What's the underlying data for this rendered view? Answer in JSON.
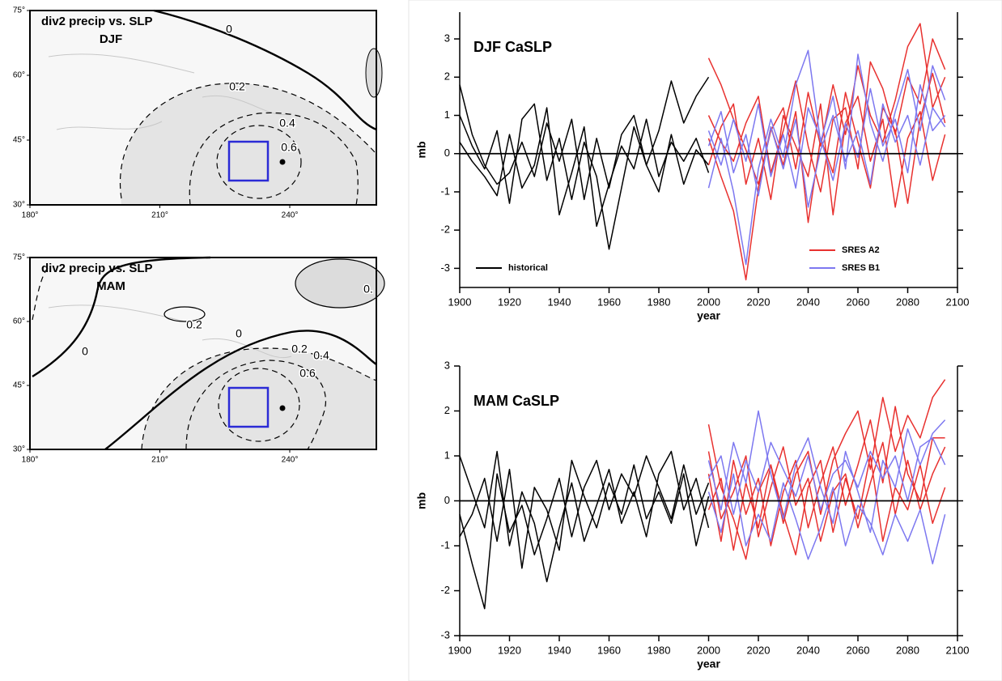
{
  "chart_data": [
    {
      "type": "map",
      "title": "div2 precip vs. SLP",
      "subtitle": "DJF",
      "xlim": [
        180,
        260
      ],
      "ylim": [
        30,
        75
      ],
      "xticks": [
        {
          "value": 180,
          "label": "180°"
        },
        {
          "value": 210,
          "label": "210°"
        },
        {
          "value": 240,
          "label": "240°"
        }
      ],
      "yticks": [
        {
          "value": 30,
          "label": "30°"
        },
        {
          "value": 45,
          "label": "45°"
        },
        {
          "value": 60,
          "label": "60°"
        },
        {
          "value": 75,
          "label": "75°"
        }
      ],
      "annotations": [
        "0",
        "0.2",
        "0.4",
        "0.6"
      ]
    },
    {
      "type": "map",
      "title": "div2 precip vs. SLP",
      "subtitle": "MAM",
      "xlim": [
        180,
        260
      ],
      "ylim": [
        30,
        75
      ],
      "xticks": [
        {
          "value": 180,
          "label": "180°"
        },
        {
          "value": 210,
          "label": "210°"
        },
        {
          "value": 240,
          "label": "240°"
        }
      ],
      "yticks": [
        {
          "value": 30,
          "label": "30°"
        },
        {
          "value": 45,
          "label": "45°"
        },
        {
          "value": 60,
          "label": "60°"
        },
        {
          "value": 75,
          "label": "75°"
        }
      ],
      "annotations": [
        "0.",
        "0.2",
        "0",
        "0",
        "0.2",
        "0.4",
        "0.6"
      ]
    },
    {
      "type": "line",
      "title": "DJF CaSLP",
      "xlabel": "year",
      "ylabel": "mb",
      "xlim": [
        1900,
        2100
      ],
      "xticks": [
        1900,
        1920,
        1940,
        1960,
        1980,
        2000,
        2020,
        2040,
        2060,
        2080,
        2100
      ],
      "ylim": [
        -3.5,
        3.7
      ],
      "yticks": [
        -3,
        -2,
        -1,
        0,
        1,
        2,
        3
      ],
      "hlines": [
        0
      ],
      "legend": true,
      "series": [
        {
          "name": "historical",
          "color": "#000000",
          "x": [
            1900,
            1905,
            1910,
            1915,
            1920,
            1925,
            1930,
            1935,
            1940,
            1945,
            1950,
            1955,
            1960,
            1965,
            1970,
            1975,
            1980,
            1985,
            1990,
            1995,
            2000
          ],
          "values": [
            1.8,
            0.5,
            -0.3,
            -0.8,
            -0.5,
            0.3,
            -0.6,
            0.8,
            -0.2,
            0.9,
            -1.2,
            0.4,
            -0.9,
            0.5,
            1.0,
            -0.3,
            0.6,
            1.9,
            0.8,
            1.5,
            2.0
          ]
        },
        {
          "color": "#000000",
          "x": [
            1900,
            1905,
            1910,
            1915,
            1920,
            1925,
            1930,
            1935,
            1940,
            1945,
            1950,
            1955,
            1960,
            1965,
            1970,
            1975,
            1980,
            1985,
            1990,
            1995,
            2000
          ],
          "values": [
            0.3,
            -0.2,
            -0.6,
            -1.1,
            0.5,
            -0.9,
            -0.3,
            1.2,
            -1.6,
            -0.5,
            0.7,
            -1.9,
            -0.8,
            0.2,
            -0.4,
            0.9,
            -0.6,
            0.3,
            -0.2,
            0.4,
            -0.5
          ]
        },
        {
          "color": "#000000",
          "x": [
            1900,
            1905,
            1910,
            1915,
            1920,
            1925,
            1930,
            1935,
            1940,
            1945,
            1950,
            1955,
            1960,
            1965,
            1970,
            1975,
            1980,
            1985,
            1990,
            1995,
            2000
          ],
          "values": [
            1.0,
            0.2,
            -0.4,
            0.6,
            -1.3,
            0.9,
            1.3,
            -0.7,
            0.4,
            -1.2,
            0.3,
            -0.6,
            -2.5,
            -0.9,
            0.7,
            -0.3,
            -1.0,
            0.5,
            -0.8,
            0.1,
            -0.3
          ]
        },
        {
          "name": "SRES A2",
          "color": "#e8312f",
          "x": [
            2000,
            2005,
            2010,
            2015,
            2020,
            2025,
            2030,
            2035,
            2040,
            2045,
            2050,
            2055,
            2060,
            2065,
            2070,
            2075,
            2080,
            2085,
            2090,
            2095
          ],
          "values": [
            2.5,
            1.8,
            0.9,
            0.1,
            -0.8,
            0.6,
            1.2,
            -0.4,
            1.6,
            0.2,
            1.8,
            0.5,
            2.3,
            1.0,
            0.3,
            1.4,
            2.8,
            3.4,
            1.2,
            2.0
          ]
        },
        {
          "color": "#e8312f",
          "x": [
            2000,
            2005,
            2010,
            2015,
            2020,
            2025,
            2030,
            2035,
            2040,
            2045,
            2050,
            2055,
            2060,
            2065,
            2070,
            2075,
            2080,
            2085,
            2090,
            2095
          ],
          "values": [
            0.4,
            -0.6,
            -1.5,
            -3.3,
            -0.9,
            0.7,
            -0.3,
            1.1,
            -1.8,
            0.4,
            -0.5,
            1.6,
            0.3,
            -0.9,
            1.2,
            0.6,
            -1.3,
            0.9,
            2.1,
            0.8
          ]
        },
        {
          "color": "#e8312f",
          "x": [
            2000,
            2005,
            2010,
            2015,
            2020,
            2025,
            2030,
            2035,
            2040,
            2045,
            2050,
            2055,
            2060,
            2065,
            2070,
            2075,
            2080,
            2085,
            2090,
            2095
          ],
          "values": [
            1.0,
            0.3,
            -0.2,
            0.8,
            1.5,
            -0.5,
            0.6,
            1.9,
            0.2,
            -1.0,
            0.9,
            1.2,
            -0.4,
            2.4,
            1.7,
            0.5,
            2.0,
            1.3,
            3.0,
            2.2
          ]
        },
        {
          "color": "#e8312f",
          "x": [
            2000,
            2005,
            2010,
            2015,
            2020,
            2025,
            2030,
            2035,
            2040,
            2045,
            2050,
            2055,
            2060,
            2065,
            2070,
            2075,
            2080,
            2085,
            2090,
            2095
          ],
          "values": [
            -0.3,
            0.7,
            1.3,
            -0.8,
            0.4,
            -1.2,
            1.0,
            0.2,
            -0.6,
            1.3,
            -1.6,
            0.8,
            1.5,
            -0.2,
            0.9,
            -1.4,
            0.4,
            1.1,
            -0.7,
            0.5
          ]
        },
        {
          "name": "SRES B1",
          "color": "#7d78f0",
          "x": [
            2000,
            2005,
            2010,
            2015,
            2020,
            2025,
            2030,
            2035,
            2040,
            2045,
            2050,
            2055,
            2060,
            2065,
            2070,
            2075,
            2080,
            2085,
            2090,
            2095
          ],
          "values": [
            -0.9,
            0.4,
            -1.0,
            -2.9,
            -0.4,
            0.9,
            -0.1,
            1.8,
            2.7,
            0.3,
            1.5,
            -0.4,
            2.6,
            0.8,
            -0.2,
            1.1,
            2.2,
            0.6,
            2.3,
            1.4
          ]
        },
        {
          "color": "#7d78f0",
          "x": [
            2000,
            2005,
            2010,
            2015,
            2020,
            2025,
            2030,
            2035,
            2040,
            2045,
            2050,
            2055,
            2060,
            2065,
            2070,
            2075,
            2080,
            2085,
            2090,
            2095
          ],
          "values": [
            0.6,
            -0.3,
            0.9,
            -0.2,
            1.3,
            -0.6,
            0.5,
            -0.9,
            1.2,
            0.4,
            -0.7,
            0.8,
            -0.1,
            1.7,
            0.2,
            0.9,
            -0.5,
            1.8,
            0.6,
            1.0
          ]
        },
        {
          "color": "#7d78f0",
          "x": [
            2000,
            2005,
            2010,
            2015,
            2020,
            2025,
            2030,
            2035,
            2040,
            2045,
            2050,
            2055,
            2060,
            2065,
            2070,
            2075,
            2080,
            2085,
            2090,
            2095
          ],
          "values": [
            0.2,
            1.1,
            -0.5,
            0.5,
            -1.1,
            0.7,
            -0.4,
            0.9,
            -1.4,
            0.1,
            1.0,
            -0.2,
            0.6,
            -0.8,
            1.3,
            0.3,
            1.0,
            -0.3,
            1.2,
            0.7
          ]
        }
      ]
    },
    {
      "type": "line",
      "title": "MAM CaSLP",
      "xlabel": "year",
      "ylabel": "mb",
      "xlim": [
        1900,
        2100
      ],
      "xticks": [
        1900,
        1920,
        1940,
        1960,
        1980,
        2000,
        2020,
        2040,
        2060,
        2080,
        2100
      ],
      "ylim": [
        -3,
        3
      ],
      "yticks": [
        -3,
        -2,
        -1,
        0,
        1,
        2,
        3
      ],
      "hlines": [
        0
      ],
      "legend": false,
      "series": [
        {
          "color": "#000000",
          "x": [
            1900,
            1905,
            1910,
            1915,
            1920,
            1925,
            1930,
            1935,
            1940,
            1945,
            1950,
            1955,
            1960,
            1965,
            1970,
            1975,
            1980,
            1985,
            1990,
            1995,
            2000
          ],
          "values": [
            -0.3,
            -1.4,
            -2.4,
            0.6,
            -0.7,
            -0.1,
            -1.2,
            -0.4,
            0.5,
            -0.8,
            0.3,
            0.9,
            -0.2,
            0.6,
            0.1,
            1.0,
            0.3,
            -0.4,
            0.8,
            -0.3,
            0.4
          ]
        },
        {
          "color": "#000000",
          "x": [
            1900,
            1905,
            1910,
            1915,
            1920,
            1925,
            1930,
            1935,
            1940,
            1945,
            1950,
            1955,
            1960,
            1965,
            1970,
            1975,
            1980,
            1985,
            1990,
            1995,
            2000
          ],
          "values": [
            1.0,
            0.2,
            -0.6,
            1.1,
            -1.0,
            0.2,
            -0.5,
            -1.8,
            -0.6,
            0.4,
            -0.9,
            -0.1,
            0.7,
            -0.5,
            0.2,
            -0.8,
            0.6,
            1.1,
            -0.2,
            0.5,
            -0.6
          ]
        },
        {
          "color": "#000000",
          "x": [
            1900,
            1905,
            1910,
            1915,
            1920,
            1925,
            1930,
            1935,
            1940,
            1945,
            1950,
            1955,
            1960,
            1965,
            1970,
            1975,
            1980,
            1985,
            1990,
            1995,
            2000
          ],
          "values": [
            -0.8,
            -0.3,
            0.5,
            -0.9,
            0.7,
            -1.5,
            0.3,
            -0.2,
            -1.1,
            0.9,
            0.1,
            -0.6,
            0.4,
            -0.3,
            0.8,
            -0.4,
            0.2,
            -0.5,
            0.6,
            -1.0,
            0.1
          ]
        },
        {
          "color": "#e8312f",
          "x": [
            2000,
            2005,
            2010,
            2015,
            2020,
            2025,
            2030,
            2035,
            2040,
            2045,
            2050,
            2055,
            2060,
            2065,
            2070,
            2075,
            2080,
            2085,
            2090,
            2095
          ],
          "values": [
            1.7,
            0.3,
            -0.4,
            -1.3,
            0.2,
            0.8,
            -0.5,
            0.6,
            1.1,
            -0.3,
            0.9,
            1.5,
            2.0,
            0.7,
            2.3,
            1.1,
            1.9,
            1.4,
            2.3,
            2.7
          ]
        },
        {
          "color": "#e8312f",
          "x": [
            2000,
            2005,
            2010,
            2015,
            2020,
            2025,
            2030,
            2035,
            2040,
            2045,
            2050,
            2055,
            2060,
            2065,
            2070,
            2075,
            2080,
            2085,
            2090,
            2095
          ],
          "values": [
            0.6,
            -0.9,
            0.9,
            -0.3,
            0.5,
            -1.0,
            0.2,
            0.9,
            -0.6,
            0.4,
            1.2,
            -0.1,
            0.8,
            1.8,
            0.4,
            2.1,
            0.6,
            0.0,
            1.4,
            1.4
          ]
        },
        {
          "color": "#e8312f",
          "x": [
            2000,
            2005,
            2010,
            2015,
            2020,
            2025,
            2030,
            2035,
            2040,
            2045,
            2050,
            2055,
            2060,
            2065,
            2070,
            2075,
            2080,
            2085,
            2090,
            2095
          ],
          "values": [
            -0.2,
            0.5,
            -1.1,
            0.4,
            -0.6,
            0.8,
            -0.3,
            -1.2,
            0.3,
            0.9,
            -0.7,
            0.5,
            -0.4,
            1.0,
            -0.9,
            0.3,
            -0.2,
            0.8,
            -0.5,
            0.3
          ]
        },
        {
          "color": "#e8312f",
          "x": [
            2000,
            2005,
            2010,
            2015,
            2020,
            2025,
            2030,
            2035,
            2040,
            2045,
            2050,
            2055,
            2060,
            2065,
            2070,
            2075,
            2080,
            2085,
            2090,
            2095
          ],
          "values": [
            1.1,
            -0.4,
            0.2,
            1.0,
            -0.8,
            0.3,
            1.2,
            -0.1,
            0.5,
            -0.9,
            0.2,
            0.6,
            -0.6,
            0.4,
            1.3,
            -0.3,
            0.9,
            -0.2,
            0.6,
            1.2
          ]
        },
        {
          "color": "#7d78f0",
          "x": [
            2000,
            2005,
            2010,
            2015,
            2020,
            2025,
            2030,
            2035,
            2040,
            2045,
            2050,
            2055,
            2060,
            2065,
            2070,
            2075,
            2080,
            2085,
            2090,
            2095
          ],
          "values": [
            0.9,
            -0.2,
            1.3,
            0.4,
            2.0,
            0.6,
            -0.4,
            0.8,
            1.4,
            0.3,
            -0.5,
            1.1,
            0.2,
            -0.7,
            0.9,
            0.3,
            1.6,
            0.8,
            1.5,
            1.8
          ]
        },
        {
          "color": "#7d78f0",
          "x": [
            2000,
            2005,
            2010,
            2015,
            2020,
            2025,
            2030,
            2035,
            2040,
            2045,
            2050,
            2055,
            2060,
            2065,
            2070,
            2075,
            2080,
            2085,
            2090,
            2095
          ],
          "values": [
            0.2,
            -0.7,
            0.6,
            -1.0,
            -0.3,
            -0.9,
            0.4,
            -0.4,
            -1.3,
            -0.6,
            0.3,
            -1.0,
            -0.1,
            -0.5,
            -1.2,
            -0.3,
            -0.9,
            -0.2,
            -1.4,
            -0.3
          ]
        },
        {
          "color": "#7d78f0",
          "x": [
            2000,
            2005,
            2010,
            2015,
            2020,
            2025,
            2030,
            2035,
            2040,
            2045,
            2050,
            2055,
            2060,
            2065,
            2070,
            2075,
            2080,
            2085,
            2090,
            2095
          ],
          "values": [
            0.5,
            1.0,
            -0.3,
            0.9,
            0.2,
            1.3,
            0.7,
            0.1,
            1.0,
            -0.2,
            0.6,
            0.9,
            0.3,
            1.1,
            0.5,
            1.0,
            0.0,
            1.2,
            1.4,
            0.8
          ]
        }
      ]
    }
  ]
}
